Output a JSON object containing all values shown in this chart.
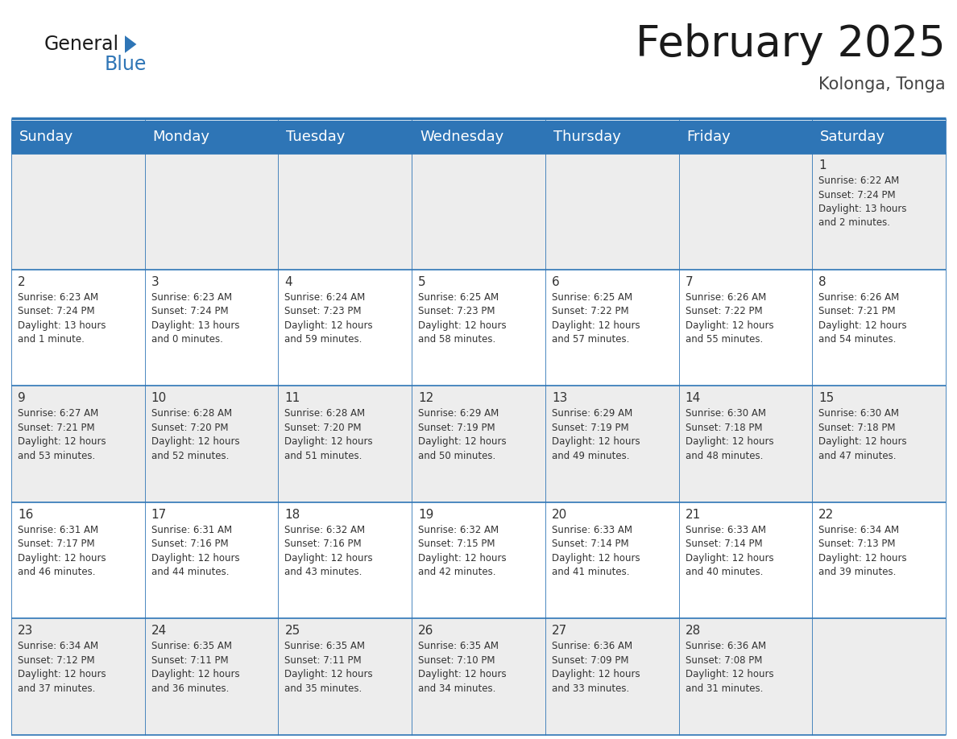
{
  "title": "February 2025",
  "subtitle": "Kolonga, Tonga",
  "header_color": "#2E75B6",
  "header_text_color": "#FFFFFF",
  "background_color": "#FFFFFF",
  "cell_bg_even": "#EDEDED",
  "cell_bg_odd": "#FFFFFF",
  "text_color": "#333333",
  "line_color": "#2E75B6",
  "day_headers": [
    "Sunday",
    "Monday",
    "Tuesday",
    "Wednesday",
    "Thursday",
    "Friday",
    "Saturday"
  ],
  "title_fontsize": 38,
  "subtitle_fontsize": 15,
  "header_fontsize": 13,
  "day_num_fontsize": 11,
  "cell_text_fontsize": 8.5,
  "logo_general_fontsize": 17,
  "logo_blue_fontsize": 17,
  "weeks": [
    [
      {
        "day": null,
        "info": null
      },
      {
        "day": null,
        "info": null
      },
      {
        "day": null,
        "info": null
      },
      {
        "day": null,
        "info": null
      },
      {
        "day": null,
        "info": null
      },
      {
        "day": null,
        "info": null
      },
      {
        "day": 1,
        "info": "Sunrise: 6:22 AM\nSunset: 7:24 PM\nDaylight: 13 hours\nand 2 minutes."
      }
    ],
    [
      {
        "day": 2,
        "info": "Sunrise: 6:23 AM\nSunset: 7:24 PM\nDaylight: 13 hours\nand 1 minute."
      },
      {
        "day": 3,
        "info": "Sunrise: 6:23 AM\nSunset: 7:24 PM\nDaylight: 13 hours\nand 0 minutes."
      },
      {
        "day": 4,
        "info": "Sunrise: 6:24 AM\nSunset: 7:23 PM\nDaylight: 12 hours\nand 59 minutes."
      },
      {
        "day": 5,
        "info": "Sunrise: 6:25 AM\nSunset: 7:23 PM\nDaylight: 12 hours\nand 58 minutes."
      },
      {
        "day": 6,
        "info": "Sunrise: 6:25 AM\nSunset: 7:22 PM\nDaylight: 12 hours\nand 57 minutes."
      },
      {
        "day": 7,
        "info": "Sunrise: 6:26 AM\nSunset: 7:22 PM\nDaylight: 12 hours\nand 55 minutes."
      },
      {
        "day": 8,
        "info": "Sunrise: 6:26 AM\nSunset: 7:21 PM\nDaylight: 12 hours\nand 54 minutes."
      }
    ],
    [
      {
        "day": 9,
        "info": "Sunrise: 6:27 AM\nSunset: 7:21 PM\nDaylight: 12 hours\nand 53 minutes."
      },
      {
        "day": 10,
        "info": "Sunrise: 6:28 AM\nSunset: 7:20 PM\nDaylight: 12 hours\nand 52 minutes."
      },
      {
        "day": 11,
        "info": "Sunrise: 6:28 AM\nSunset: 7:20 PM\nDaylight: 12 hours\nand 51 minutes."
      },
      {
        "day": 12,
        "info": "Sunrise: 6:29 AM\nSunset: 7:19 PM\nDaylight: 12 hours\nand 50 minutes."
      },
      {
        "day": 13,
        "info": "Sunrise: 6:29 AM\nSunset: 7:19 PM\nDaylight: 12 hours\nand 49 minutes."
      },
      {
        "day": 14,
        "info": "Sunrise: 6:30 AM\nSunset: 7:18 PM\nDaylight: 12 hours\nand 48 minutes."
      },
      {
        "day": 15,
        "info": "Sunrise: 6:30 AM\nSunset: 7:18 PM\nDaylight: 12 hours\nand 47 minutes."
      }
    ],
    [
      {
        "day": 16,
        "info": "Sunrise: 6:31 AM\nSunset: 7:17 PM\nDaylight: 12 hours\nand 46 minutes."
      },
      {
        "day": 17,
        "info": "Sunrise: 6:31 AM\nSunset: 7:16 PM\nDaylight: 12 hours\nand 44 minutes."
      },
      {
        "day": 18,
        "info": "Sunrise: 6:32 AM\nSunset: 7:16 PM\nDaylight: 12 hours\nand 43 minutes."
      },
      {
        "day": 19,
        "info": "Sunrise: 6:32 AM\nSunset: 7:15 PM\nDaylight: 12 hours\nand 42 minutes."
      },
      {
        "day": 20,
        "info": "Sunrise: 6:33 AM\nSunset: 7:14 PM\nDaylight: 12 hours\nand 41 minutes."
      },
      {
        "day": 21,
        "info": "Sunrise: 6:33 AM\nSunset: 7:14 PM\nDaylight: 12 hours\nand 40 minutes."
      },
      {
        "day": 22,
        "info": "Sunrise: 6:34 AM\nSunset: 7:13 PM\nDaylight: 12 hours\nand 39 minutes."
      }
    ],
    [
      {
        "day": 23,
        "info": "Sunrise: 6:34 AM\nSunset: 7:12 PM\nDaylight: 12 hours\nand 37 minutes."
      },
      {
        "day": 24,
        "info": "Sunrise: 6:35 AM\nSunset: 7:11 PM\nDaylight: 12 hours\nand 36 minutes."
      },
      {
        "day": 25,
        "info": "Sunrise: 6:35 AM\nSunset: 7:11 PM\nDaylight: 12 hours\nand 35 minutes."
      },
      {
        "day": 26,
        "info": "Sunrise: 6:35 AM\nSunset: 7:10 PM\nDaylight: 12 hours\nand 34 minutes."
      },
      {
        "day": 27,
        "info": "Sunrise: 6:36 AM\nSunset: 7:09 PM\nDaylight: 12 hours\nand 33 minutes."
      },
      {
        "day": 28,
        "info": "Sunrise: 6:36 AM\nSunset: 7:08 PM\nDaylight: 12 hours\nand 31 minutes."
      },
      {
        "day": null,
        "info": null
      }
    ]
  ]
}
